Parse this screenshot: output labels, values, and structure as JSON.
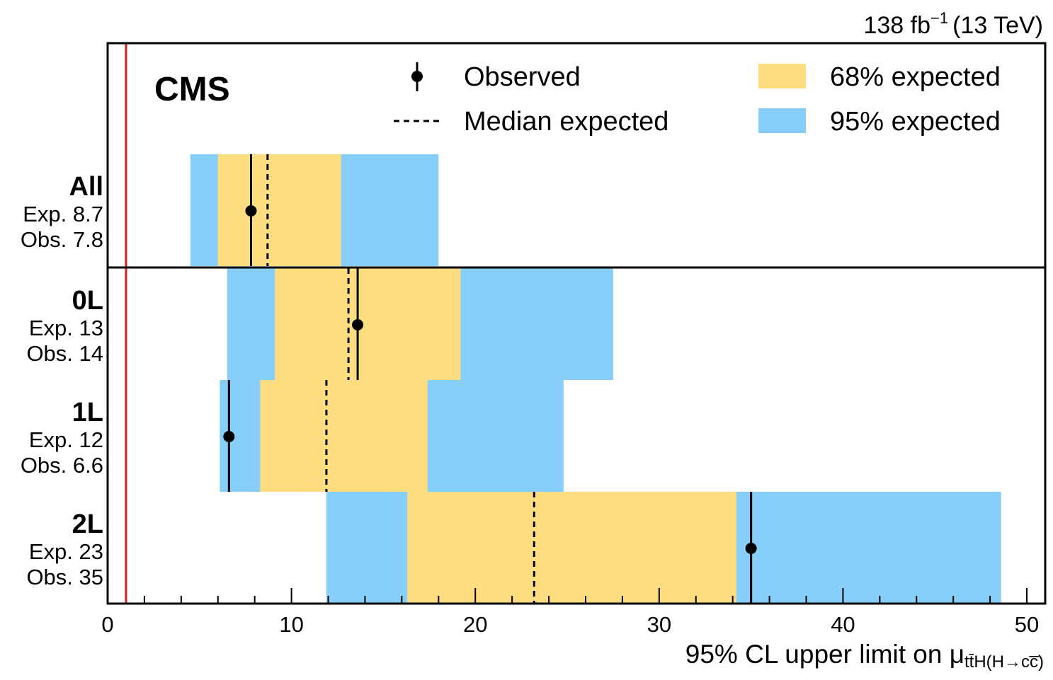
{
  "chart_data": {
    "type": "bar",
    "orientation": "horizontal",
    "experiment": "CMS",
    "luminosity_label": "138 fb",
    "luminosity_exponent": "−1",
    "energy_label": "(13 TeV)",
    "xlabel": "95% CL upper limit on μ",
    "xlabel_subscript": "tt̄H(H→cc̅)",
    "xlim": [
      0,
      51
    ],
    "xticks": [
      0,
      10,
      20,
      30,
      40,
      50
    ],
    "reference_line": {
      "x": 1,
      "color": "#e41a1c"
    },
    "categories": [
      {
        "name": "All",
        "exp_label": "Exp. 8.7",
        "obs_label": "Obs. 7.8",
        "observed": 7.8,
        "expected": 8.7,
        "band68": [
          6.0,
          12.7
        ],
        "band95": [
          4.5,
          18.0
        ]
      },
      {
        "name": "0L",
        "exp_label": "Exp. 13",
        "obs_label": "Obs. 14",
        "observed": 13.6,
        "expected": 13.1,
        "band68": [
          9.1,
          19.2
        ],
        "band95": [
          6.5,
          27.5
        ]
      },
      {
        "name": "1L",
        "exp_label": "Exp. 12",
        "obs_label": "Obs. 6.6",
        "observed": 6.6,
        "expected": 11.9,
        "band68": [
          8.3,
          17.4
        ],
        "band95": [
          6.1,
          24.8
        ]
      },
      {
        "name": "2L",
        "exp_label": "Exp. 23",
        "obs_label": "Obs. 35",
        "observed": 35.0,
        "expected": 23.2,
        "band68": [
          16.3,
          34.2
        ],
        "band95": [
          11.9,
          48.6
        ]
      }
    ],
    "legend": {
      "observed": "Observed",
      "median": "Median expected",
      "band68": "68% expected",
      "band95": "95% expected"
    },
    "colors": {
      "band68": "#fddd80",
      "band95": "#87cefa",
      "line": "#000000",
      "reference": "#e41a1c"
    }
  }
}
